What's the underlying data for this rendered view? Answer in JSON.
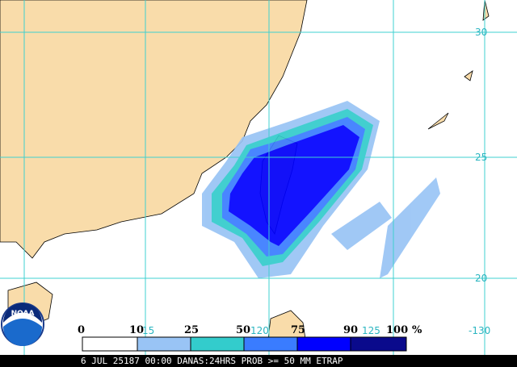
{
  "map": {
    "lat_labels": [
      "30",
      "25",
      "20"
    ],
    "lon_labels": [
      "15",
      "120",
      "125",
      "-130"
    ]
  },
  "legend": {
    "labels": [
      "0",
      "10",
      "25",
      "50",
      "75",
      "90",
      "100"
    ],
    "unit": "%"
  },
  "logo": "NOAA",
  "footer": "6 JUL 25187 00:00 DANAS:24HRS PROB >= 50 MM ETRAP"
}
